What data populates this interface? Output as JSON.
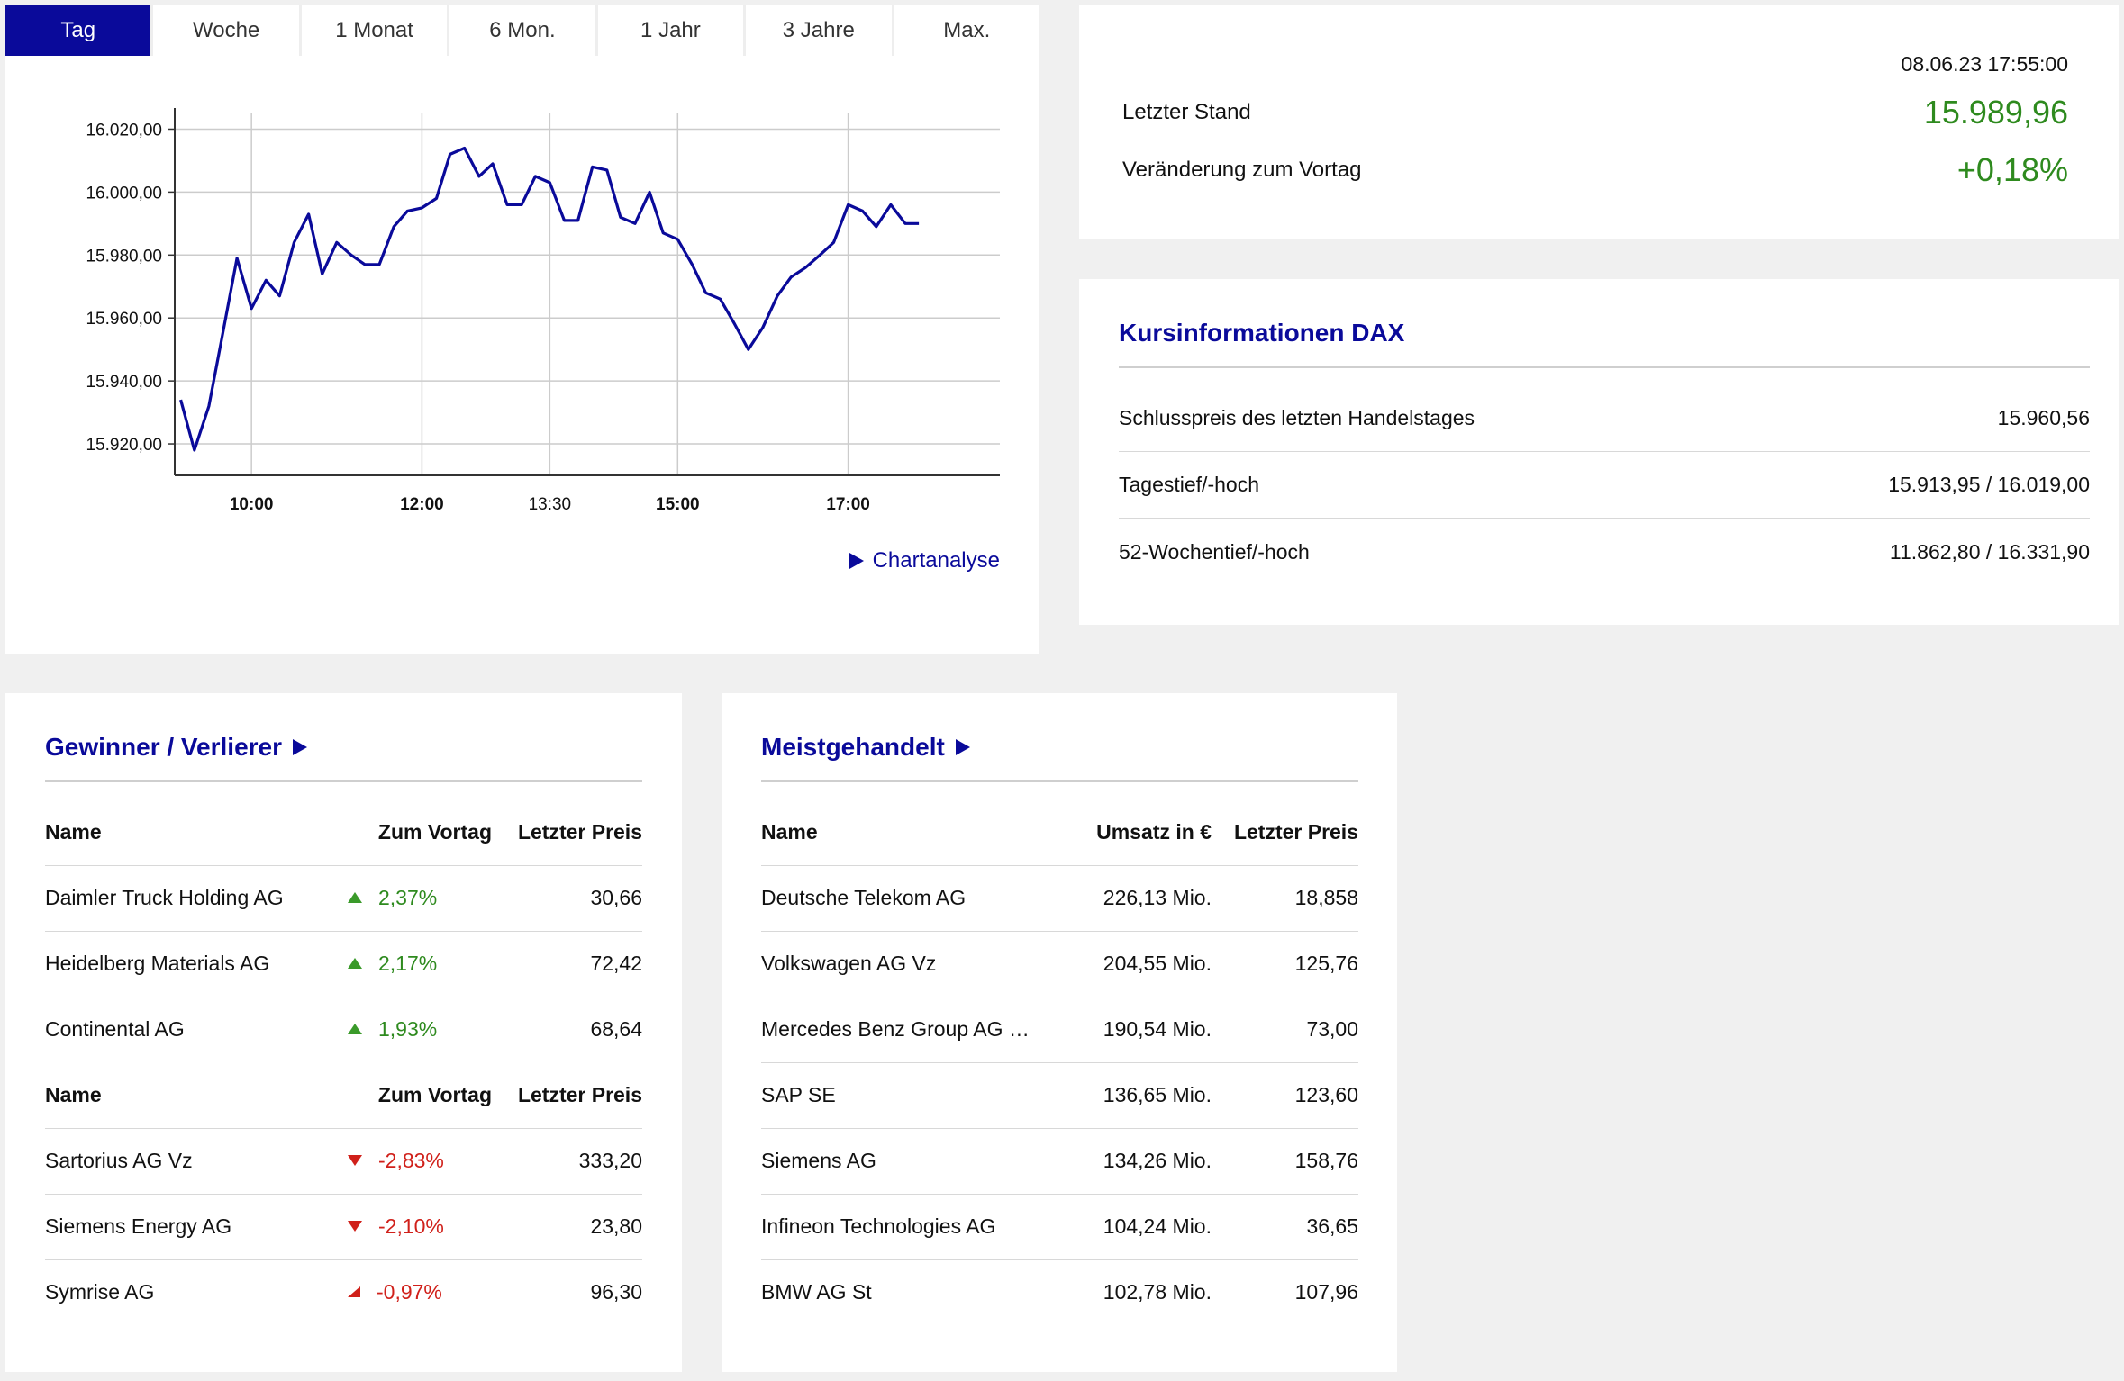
{
  "tabs": [
    {
      "label": "Tag",
      "active": true
    },
    {
      "label": "Woche",
      "active": false
    },
    {
      "label": "1 Monat",
      "active": false
    },
    {
      "label": "6 Mon.",
      "active": false
    },
    {
      "label": "1 Jahr",
      "active": false
    },
    {
      "label": "3 Jahre",
      "active": false
    },
    {
      "label": "Max.",
      "active": false
    }
  ],
  "chart_link": "Chartanalyse",
  "chart_data": {
    "type": "line",
    "title": "",
    "xlabel": "",
    "ylabel": "",
    "ylim": [
      15910,
      16025
    ],
    "yticks": [
      {
        "value": 15920,
        "label": "15.920,00"
      },
      {
        "value": 15940,
        "label": "15.940,00"
      },
      {
        "value": 15960,
        "label": "15.960,00"
      },
      {
        "value": 15980,
        "label": "15.980,00"
      },
      {
        "value": 16000,
        "label": "16.000,00"
      },
      {
        "value": 16020,
        "label": "16.020,00"
      }
    ],
    "xticks": [
      {
        "value": 10.0,
        "label": "10:00",
        "bold": true
      },
      {
        "value": 12.0,
        "label": "12:00",
        "bold": true
      },
      {
        "value": 13.5,
        "label": "13:30",
        "bold": false
      },
      {
        "value": 15.0,
        "label": "15:00",
        "bold": true
      },
      {
        "value": 17.0,
        "label": "17:00",
        "bold": true
      }
    ],
    "xrange_hours": [
      9.1,
      18.78
    ],
    "grid": true,
    "color": "#0a0a9a",
    "x": [
      9.17,
      9.33,
      9.5,
      9.67,
      9.83,
      10.0,
      10.17,
      10.33,
      10.5,
      10.67,
      10.83,
      11.0,
      11.17,
      11.33,
      11.5,
      11.67,
      11.83,
      12.0,
      12.17,
      12.33,
      12.5,
      12.67,
      12.83,
      13.0,
      13.17,
      13.33,
      13.5,
      13.67,
      13.83,
      14.0,
      14.17,
      14.33,
      14.5,
      14.67,
      14.83,
      15.0,
      15.17,
      15.33,
      15.5,
      15.67,
      15.83,
      16.0,
      16.17,
      16.33,
      16.5,
      16.67,
      16.83,
      17.0,
      17.17,
      17.33,
      17.5,
      17.67,
      17.83
    ],
    "y": [
      15934,
      15918,
      15932,
      15956,
      15979,
      15963,
      15972,
      15967,
      15984,
      15993,
      15974,
      15984,
      15980,
      15977,
      15977,
      15989,
      15994,
      15995,
      15998,
      16012,
      16014,
      16005,
      16009,
      15996,
      15996,
      16005,
      16003,
      15991,
      15991,
      16008,
      16007,
      15992,
      15990,
      16000,
      15987,
      15985,
      15977,
      15968,
      15966,
      15958,
      15950,
      15957,
      15967,
      15973,
      15976,
      15980,
      15984,
      15996,
      15994,
      15989,
      15996,
      15990,
      15990
    ]
  },
  "price": {
    "timestamp": "08.06.23 17:55:00",
    "last_label": "Letzter Stand",
    "last_value": "15.989,96",
    "change_label": "Veränderung zum Vortag",
    "change_value": "+0,18%"
  },
  "info": {
    "title": "Kursinformationen DAX",
    "rows": [
      {
        "label": "Schlusspreis des letzten Handelstages",
        "value": "15.960,56"
      },
      {
        "label": "Tagestief/-hoch",
        "value": "15.913,95 / 16.019,00"
      },
      {
        "label": "52-Wochentief/-hoch",
        "value": "11.862,80 / 16.331,90"
      }
    ]
  },
  "gainers_losers": {
    "title": "Gewinner / Verlierer",
    "headers": {
      "name": "Name",
      "change": "Zum Vortag",
      "price": "Letzter Preis"
    },
    "gainers": [
      {
        "name": "Daimler Truck Holding AG",
        "change": "2,37%",
        "price": "30,66"
      },
      {
        "name": "Heidelberg Materials AG",
        "change": "2,17%",
        "price": "72,42"
      },
      {
        "name": "Continental AG",
        "change": "1,93%",
        "price": "68,64"
      }
    ],
    "losers": [
      {
        "name": "Sartorius AG Vz",
        "change": "-2,83%",
        "price": "333,20"
      },
      {
        "name": "Siemens Energy AG",
        "change": "-2,10%",
        "price": "23,80"
      },
      {
        "name": "Symrise AG",
        "change": "-0,97%",
        "price": "96,30"
      }
    ]
  },
  "most_traded": {
    "title": "Meistgehandelt",
    "headers": {
      "name": "Name",
      "volume": "Umsatz in €",
      "price": "Letzter Preis"
    },
    "rows": [
      {
        "name": "Deutsche Telekom AG",
        "volume": "226,13 Mio.",
        "price": "18,858"
      },
      {
        "name": "Volkswagen AG Vz",
        "volume": "204,55 Mio.",
        "price": "125,76"
      },
      {
        "name": "Mercedes Benz Group AG …",
        "volume": "190,54 Mio.",
        "price": "73,00"
      },
      {
        "name": "SAP SE",
        "volume": "136,65 Mio.",
        "price": "123,60"
      },
      {
        "name": "Siemens AG",
        "volume": "134,26 Mio.",
        "price": "158,76"
      },
      {
        "name": "Infineon Technologies AG",
        "volume": "104,24 Mio.",
        "price": "36,65"
      },
      {
        "name": "BMW AG St",
        "volume": "102,78 Mio.",
        "price": "107,96"
      }
    ]
  },
  "colors": {
    "accent": "#0a0a9a",
    "positive": "#2e8a1e",
    "negative": "#d0201a"
  }
}
